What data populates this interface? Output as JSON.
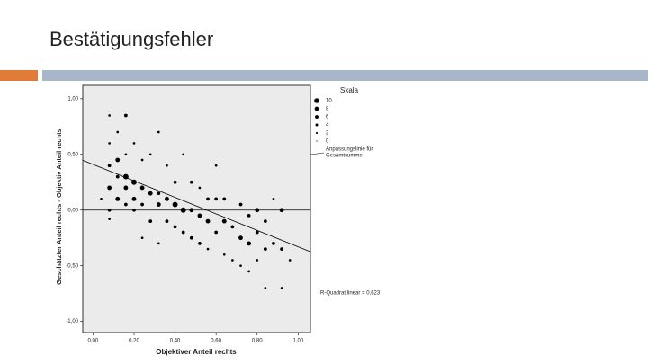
{
  "slide": {
    "title": "Bestätigungsfehler"
  },
  "chart_data": {
    "type": "scatter",
    "x_label": "Objektiver Anteil rechts",
    "y_label": "Geschätzter Anteil rechts - Objektiv Anteil rechts",
    "legend_title": "Skala",
    "size_legend": [
      10,
      8,
      6,
      4,
      2,
      0
    ],
    "fit_legend": [
      "Anpassungslinie für",
      "Gesamtsumme"
    ],
    "annotation": "R-Quadrat linear = 0,623",
    "fit_line": {
      "intercept": 0.41,
      "slope": -0.74
    },
    "reference_y": 0,
    "color": "#000000",
    "xlim": [
      -0.05,
      1.06
    ],
    "ylim": [
      -1.1,
      1.12
    ],
    "xticks": [
      {
        "value": 0,
        "label": "0,00"
      },
      {
        "value": 0.2,
        "label": "0,20"
      },
      {
        "value": 0.4,
        "label": "0,40"
      },
      {
        "value": 0.6,
        "label": "0,60"
      },
      {
        "value": 0.8,
        "label": "0,80"
      },
      {
        "value": 1,
        "label": "1,00"
      }
    ],
    "yticks": [
      {
        "value": 1,
        "label": "1,00"
      },
      {
        "value": 0.5,
        "label": "0,50"
      },
      {
        "value": 0,
        "label": "0,00"
      },
      {
        "value": -0.5,
        "label": "-0,50"
      },
      {
        "value": -1,
        "label": "-1,00"
      }
    ],
    "x": [
      0.04,
      0.08,
      0.08,
      0.08,
      0.08,
      0.08,
      0.08,
      0.12,
      0.12,
      0.12,
      0.12,
      0.16,
      0.16,
      0.16,
      0.16,
      0.16,
      0.2,
      0.2,
      0.2,
      0.2,
      0.24,
      0.24,
      0.24,
      0.24,
      0.28,
      0.28,
      0.28,
      0.32,
      0.32,
      0.32,
      0.32,
      0.36,
      0.36,
      0.36,
      0.4,
      0.4,
      0.4,
      0.44,
      0.44,
      0.44,
      0.48,
      0.48,
      0.48,
      0.52,
      0.52,
      0.52,
      0.56,
      0.56,
      0.56,
      0.6,
      0.6,
      0.6,
      0.64,
      0.64,
      0.64,
      0.68,
      0.68,
      0.72,
      0.72,
      0.72,
      0.76,
      0.76,
      0.76,
      0.8,
      0.8,
      0.8,
      0.84,
      0.84,
      0.84,
      0.88,
      0.88,
      0.92,
      0.92,
      0.92,
      0.96
    ],
    "y": [
      0.1,
      0.85,
      0.6,
      0.4,
      0.2,
      0.0,
      -0.08,
      0.7,
      0.45,
      0.3,
      0.1,
      0.85,
      0.5,
      0.3,
      0.2,
      0.05,
      0.6,
      0.25,
      0.1,
      0.0,
      0.45,
      0.2,
      0.05,
      -0.25,
      0.5,
      0.15,
      -0.1,
      0.7,
      0.15,
      0.05,
      -0.3,
      0.4,
      0.1,
      -0.1,
      0.25,
      0.05,
      -0.15,
      0.5,
      0.0,
      -0.2,
      0.25,
      0.0,
      -0.25,
      0.2,
      -0.05,
      -0.3,
      0.1,
      -0.1,
      -0.35,
      0.4,
      0.1,
      -0.2,
      0.1,
      -0.1,
      -0.4,
      -0.15,
      -0.45,
      0.05,
      -0.25,
      -0.5,
      -0.05,
      -0.3,
      -0.55,
      0.0,
      -0.2,
      -0.45,
      -0.1,
      -0.35,
      -0.7,
      0.1,
      -0.3,
      0.0,
      -0.35,
      -0.7,
      -0.45
    ],
    "sizes": [
      2,
      2,
      2,
      4,
      6,
      4,
      2,
      2,
      6,
      4,
      6,
      4,
      2,
      8,
      6,
      4,
      2,
      8,
      6,
      4,
      2,
      6,
      4,
      2,
      2,
      6,
      4,
      2,
      4,
      6,
      2,
      2,
      6,
      4,
      4,
      8,
      4,
      2,
      8,
      4,
      4,
      6,
      4,
      2,
      6,
      4,
      4,
      6,
      2,
      2,
      4,
      4,
      4,
      6,
      2,
      4,
      2,
      4,
      6,
      2,
      4,
      6,
      2,
      6,
      4,
      2,
      4,
      4,
      2,
      2,
      4,
      6,
      4,
      2,
      2
    ]
  }
}
